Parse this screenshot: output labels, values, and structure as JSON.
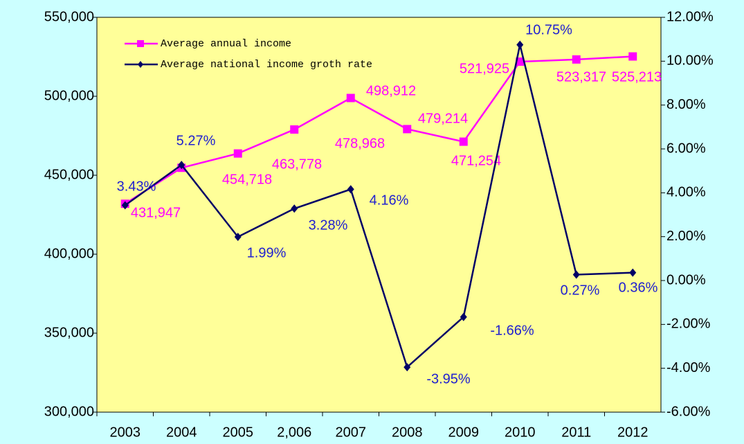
{
  "chart_data": {
    "type": "line",
    "categories": [
      "2003",
      "2004",
      "2005",
      "2,006",
      "2007",
      "2008",
      "2009",
      "2010",
      "2011",
      "2012"
    ],
    "series": [
      {
        "name": "Average annual income",
        "color": "#ff00ff",
        "marker": "square",
        "values": [
          431947,
          454718,
          463778,
          478968,
          498912,
          479214,
          471254,
          521925,
          523317,
          525213
        ],
        "value_labels": [
          "431,947",
          "454,718",
          "463,778",
          "478,968",
          "498,912",
          "479,214",
          "471,254",
          "521,925",
          "523,317",
          "525,213"
        ]
      },
      {
        "name": "Average national income groth rate",
        "color": "#000066",
        "label_color": "#1f1fd0",
        "marker": "diamond",
        "axis": "y2",
        "values": [
          3.43,
          5.27,
          1.99,
          3.28,
          4.16,
          -3.95,
          -1.66,
          10.75,
          0.27,
          0.36
        ],
        "value_labels": [
          "3.43%",
          "5.27%",
          "1.99%",
          "3.28%",
          "4.16%",
          "-3.95%",
          "-1.66%",
          "10.75%",
          "0.27%",
          "0.36%"
        ]
      }
    ],
    "ylim": [
      300000,
      550000
    ],
    "yticks": [
      {
        "value": 300000,
        "label": "300,000"
      },
      {
        "value": 350000,
        "label": "350,000"
      },
      {
        "value": 400000,
        "label": "400,000"
      },
      {
        "value": 450000,
        "label": "450,000"
      },
      {
        "value": 500000,
        "label": "500,000"
      },
      {
        "value": 550000,
        "label": "550,000"
      }
    ],
    "y2lim": [
      -6,
      12
    ],
    "y2ticks": [
      {
        "value": -6,
        "label": "-6.00%"
      },
      {
        "value": -4,
        "label": "-4.00%"
      },
      {
        "value": -2,
        "label": "-2.00%"
      },
      {
        "value": 0,
        "label": "0.00%"
      },
      {
        "value": 2,
        "label": "2.00%"
      },
      {
        "value": 4,
        "label": "4.00%"
      },
      {
        "value": 6,
        "label": "6.00%"
      },
      {
        "value": 8,
        "label": "8.00%"
      },
      {
        "value": 10,
        "label": "10.00%"
      },
      {
        "value": 12,
        "label": "12.00%"
      }
    ],
    "legend": "upper left"
  }
}
